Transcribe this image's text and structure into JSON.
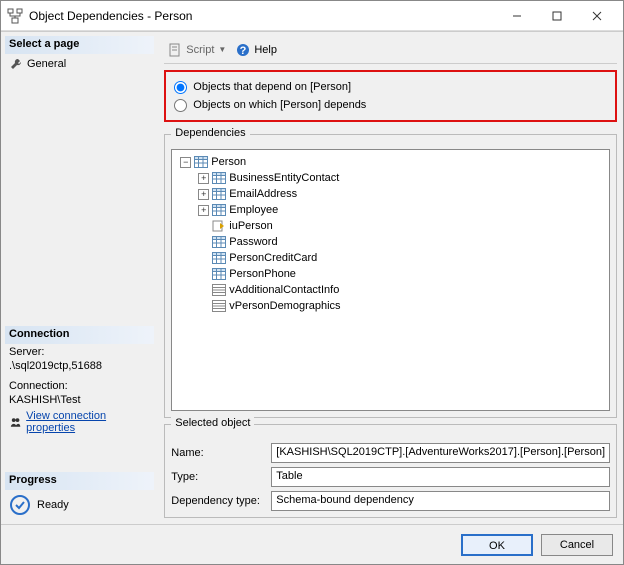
{
  "window": {
    "title": "Object Dependencies - Person"
  },
  "left": {
    "select_page": "Select a page",
    "general": "General",
    "connection_head": "Connection",
    "server_label": "Server:",
    "server_val": ".\\sql2019ctp,51688",
    "conn_label": "Connection:",
    "conn_val": "KASHISH\\Test",
    "view_props": "View connection properties",
    "progress_head": "Progress",
    "ready": "Ready"
  },
  "toolbar": {
    "script": "Script",
    "help": "Help"
  },
  "radios": {
    "opt1": "Objects that depend on [Person]",
    "opt2": "Objects on which [Person] depends"
  },
  "group": {
    "deps": "Dependencies",
    "selected": "Selected object"
  },
  "tree": {
    "root": "Person",
    "items": [
      {
        "label": "BusinessEntityContact",
        "exp": "+",
        "icon": "table"
      },
      {
        "label": "EmailAddress",
        "exp": "+",
        "icon": "table"
      },
      {
        "label": "Employee",
        "exp": "+",
        "icon": "table"
      },
      {
        "label": "iuPerson",
        "exp": "",
        "icon": "trigger"
      },
      {
        "label": "Password",
        "exp": "",
        "icon": "table"
      },
      {
        "label": "PersonCreditCard",
        "exp": "",
        "icon": "table"
      },
      {
        "label": "PersonPhone",
        "exp": "",
        "icon": "table"
      },
      {
        "label": "vAdditionalContactInfo",
        "exp": "",
        "icon": "view"
      },
      {
        "label": "vPersonDemographics",
        "exp": "",
        "icon": "view"
      }
    ]
  },
  "fields": {
    "name_label": "Name:",
    "name_val": "[KASHISH\\SQL2019CTP].[AdventureWorks2017].[Person].[Person]",
    "type_label": "Type:",
    "type_val": "Table",
    "dep_label": "Dependency type:",
    "dep_val": "Schema-bound dependency"
  },
  "buttons": {
    "ok": "OK",
    "cancel": "Cancel"
  },
  "colors": {
    "highlight_border": "#d11",
    "link": "#0645ad",
    "primary_border": "#2a6fc9"
  }
}
